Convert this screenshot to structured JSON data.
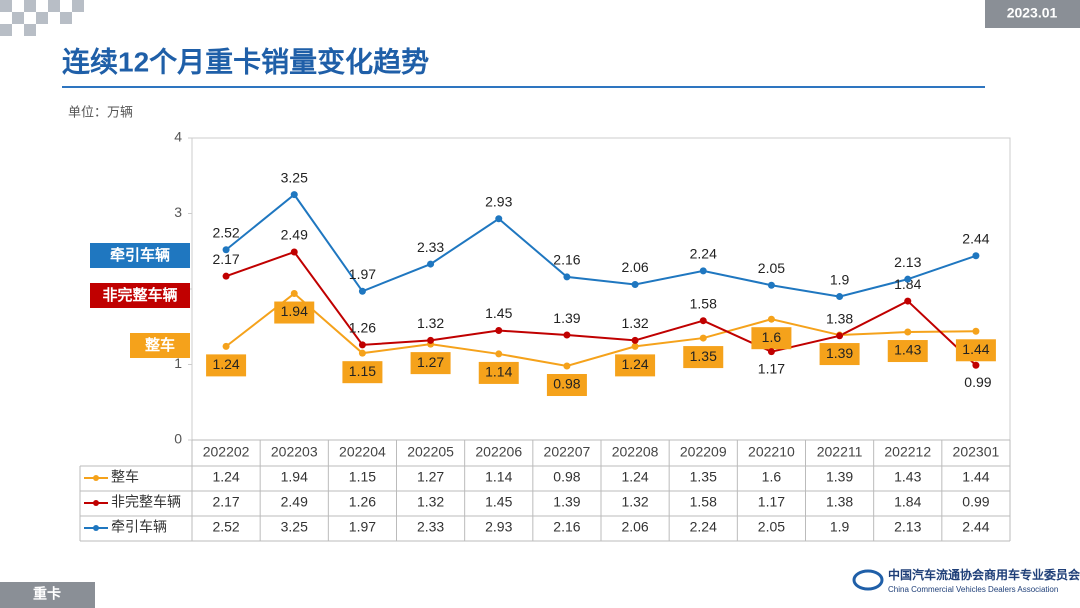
{
  "header": {
    "date": "2023.01",
    "title": "连续12个月重卡销量变化趋势",
    "unit": "单位：万辆"
  },
  "footer": {
    "section": "重卡",
    "org_cn": "中国汽车流通协会商用车专业委员会",
    "org_en": "China Commercial Vehicles Dealers Association"
  },
  "chart_data": {
    "type": "line",
    "categories": [
      "202202",
      "202203",
      "202204",
      "202205",
      "202206",
      "202207",
      "202208",
      "202209",
      "202210",
      "202211",
      "202212",
      "202301"
    ],
    "ylim": [
      0,
      4
    ],
    "yticks": [
      0,
      1,
      2,
      3,
      4
    ],
    "series": [
      {
        "name": "整车",
        "color": "#f5a21b",
        "values": [
          1.24,
          1.94,
          1.15,
          1.27,
          1.14,
          0.98,
          1.24,
          1.35,
          1.6,
          1.39,
          1.43,
          1.44
        ]
      },
      {
        "name": "非完整车辆",
        "color": "#c00000",
        "values": [
          2.17,
          2.49,
          1.26,
          1.32,
          1.45,
          1.39,
          1.32,
          1.58,
          1.17,
          1.38,
          1.84,
          0.99
        ]
      },
      {
        "name": "牵引车辆",
        "color": "#1f77c0",
        "values": [
          2.52,
          3.25,
          1.97,
          2.33,
          2.93,
          2.16,
          2.06,
          2.24,
          2.05,
          1.9,
          2.13,
          2.44
        ]
      }
    ]
  }
}
